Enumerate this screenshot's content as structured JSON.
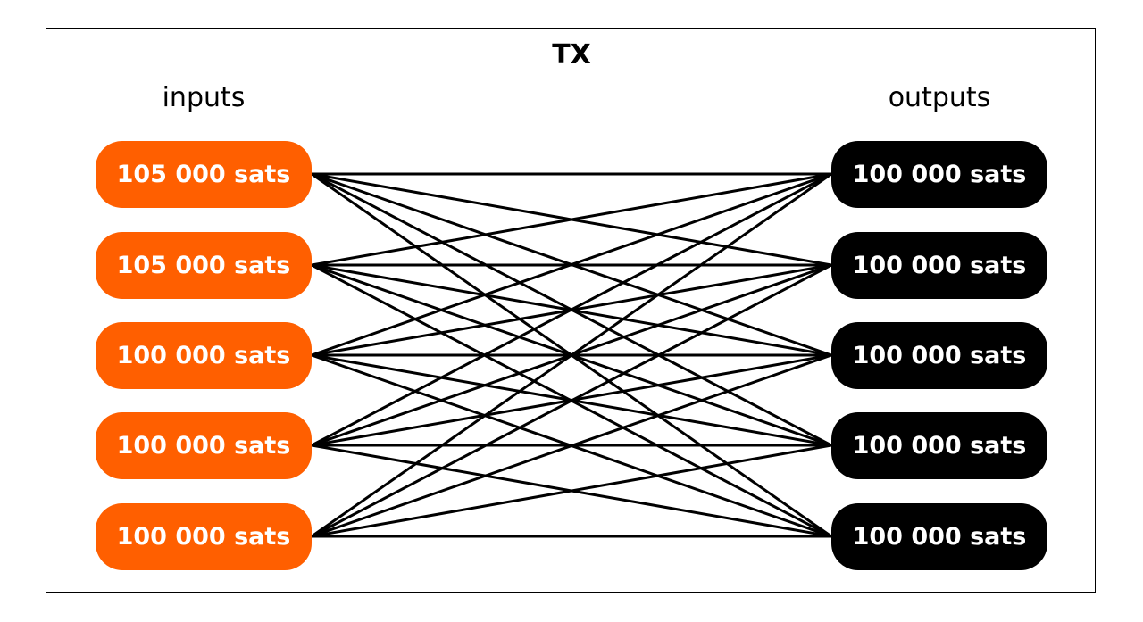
{
  "title": "TX",
  "inputs_label": "inputs",
  "outputs_label": "outputs",
  "colors": {
    "input": "#FF5F00",
    "output": "#000000",
    "link": "#000000"
  },
  "inputs": [
    "105 000 sats",
    "105 000 sats",
    "100 000 sats",
    "100 000 sats",
    "100 000 sats"
  ],
  "outputs": [
    "100 000 sats",
    "100 000 sats",
    "100 000 sats",
    "100 000 sats",
    "100 000 sats"
  ]
}
